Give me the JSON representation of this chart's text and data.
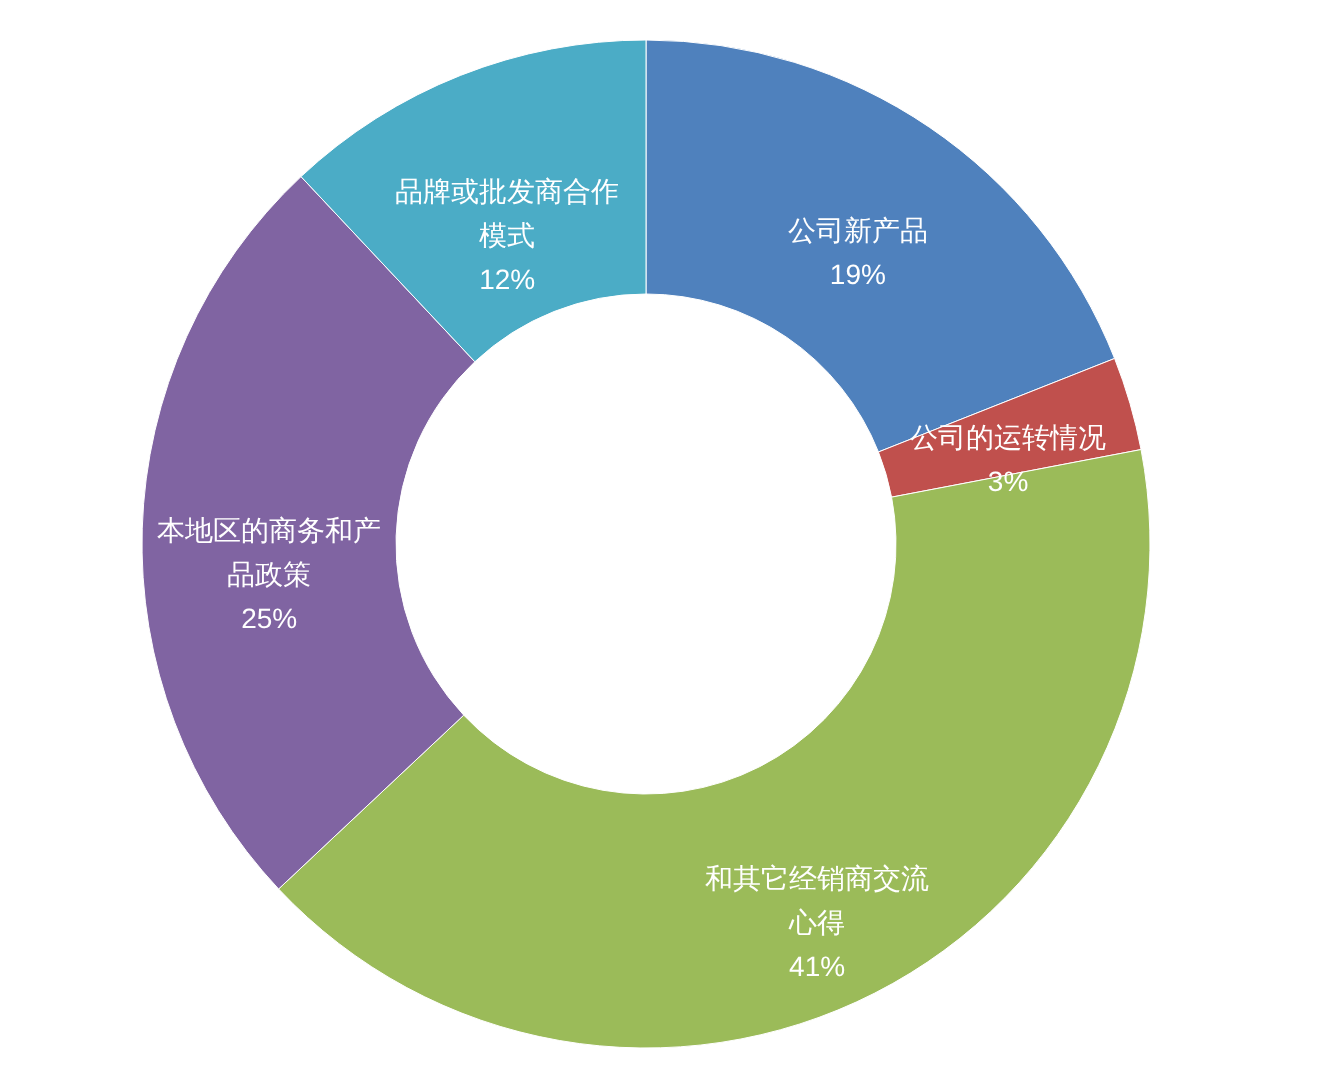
{
  "chart_data": {
    "type": "donut",
    "categories": [
      "公司新产品",
      "公司的运转情况",
      "和其它经销商交流心得",
      "本地区的商务和产品政策",
      "品牌或批发商合作模式"
    ],
    "values": [
      19,
      3,
      41,
      25,
      12
    ],
    "colors": [
      "#4f81bd",
      "#c0504d",
      "#9bbb59",
      "#8064a2",
      "#4bacc6"
    ],
    "value_labels": [
      "19%",
      "3%",
      "41%",
      "25%",
      "12%"
    ]
  }
}
